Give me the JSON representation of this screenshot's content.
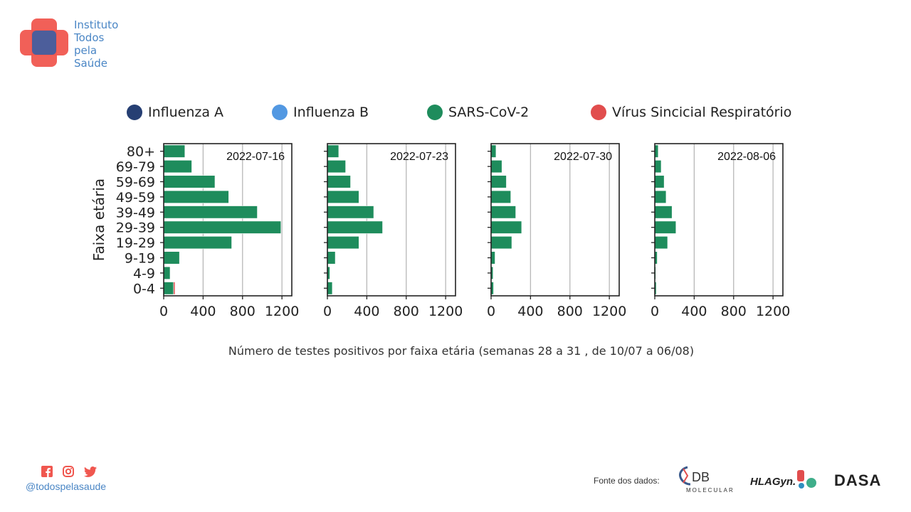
{
  "logo": {
    "lines": [
      "Instituto",
      "Todos",
      "pela",
      "Saúde"
    ],
    "colors": {
      "red": "#f0574f",
      "blue": "#2f5fa8",
      "text": "#4a86c5"
    }
  },
  "legend": [
    {
      "label": "Influenza A",
      "color": "#263f73"
    },
    {
      "label": "Influenza B",
      "color": "#5298e2"
    },
    {
      "label": "SARS-CoV-2",
      "color": "#1e8c5c"
    },
    {
      "label": "Vírus Sincicial Respiratório",
      "color": "#e14d4d"
    }
  ],
  "chart_data": [
    {
      "type": "bar",
      "orientation": "horizontal",
      "title": "2022-07-16",
      "ylabel": "Faixa etária",
      "categories": [
        "0-4",
        "4-9",
        "9-19",
        "19-29",
        "29-39",
        "39-49",
        "49-59",
        "59-69",
        "69-79",
        "80+"
      ],
      "series": [
        {
          "name": "SARS-CoV-2",
          "color": "#1e8c5c",
          "values": [
            100,
            65,
            160,
            690,
            1190,
            950,
            660,
            520,
            285,
            215
          ]
        },
        {
          "name": "Vírus Sincicial Respiratório",
          "color": "#e14d4d",
          "values": [
            15,
            0,
            0,
            0,
            0,
            0,
            0,
            0,
            0,
            0
          ]
        }
      ],
      "xlim": [
        0,
        1300
      ],
      "xticks": [
        0,
        400,
        800,
        1200
      ],
      "grid": true
    },
    {
      "type": "bar",
      "orientation": "horizontal",
      "title": "2022-07-23",
      "categories": [
        "0-4",
        "4-9",
        "9-19",
        "19-29",
        "29-39",
        "39-49",
        "49-59",
        "59-69",
        "69-79",
        "80+"
      ],
      "series": [
        {
          "name": "SARS-CoV-2",
          "color": "#1e8c5c",
          "values": [
            50,
            25,
            80,
            320,
            560,
            470,
            320,
            235,
            185,
            115
          ]
        }
      ],
      "xlim": [
        0,
        1300
      ],
      "xticks": [
        0,
        400,
        800,
        1200
      ],
      "grid": true
    },
    {
      "type": "bar",
      "orientation": "horizontal",
      "title": "2022-07-30",
      "categories": [
        "0-4",
        "4-9",
        "9-19",
        "19-29",
        "29-39",
        "39-49",
        "49-59",
        "59-69",
        "69-79",
        "80+"
      ],
      "series": [
        {
          "name": "SARS-CoV-2",
          "color": "#1e8c5c",
          "values": [
            25,
            20,
            40,
            210,
            310,
            250,
            200,
            155,
            110,
            50
          ]
        }
      ],
      "xlim": [
        0,
        1300
      ],
      "xticks": [
        0,
        400,
        800,
        1200
      ],
      "grid": true
    },
    {
      "type": "bar",
      "orientation": "horizontal",
      "title": "2022-08-06",
      "categories": [
        "0-4",
        "4-9",
        "9-19",
        "19-29",
        "29-39",
        "39-49",
        "49-59",
        "59-69",
        "69-79",
        "80+"
      ],
      "series": [
        {
          "name": "SARS-CoV-2",
          "color": "#1e8c5c",
          "values": [
            15,
            10,
            25,
            130,
            215,
            175,
            115,
            95,
            65,
            35
          ]
        }
      ],
      "xlim": [
        0,
        1300
      ],
      "xticks": [
        0,
        400,
        800,
        1200
      ],
      "grid": true
    }
  ],
  "caption": "Número de testes positivos por faixa etária (semanas 28 a 31 , de 10/07 a 06/08)",
  "social": {
    "icons": [
      "facebook-icon",
      "instagram-icon",
      "twitter-icon"
    ],
    "handle": "@todospelasaude",
    "color": "#f0574f"
  },
  "source": {
    "label": "Fonte dos dados:",
    "db_main": "DB",
    "db_sub": "MOLECULAR",
    "hla": "HLAGyn.",
    "dasa": "DASA"
  }
}
